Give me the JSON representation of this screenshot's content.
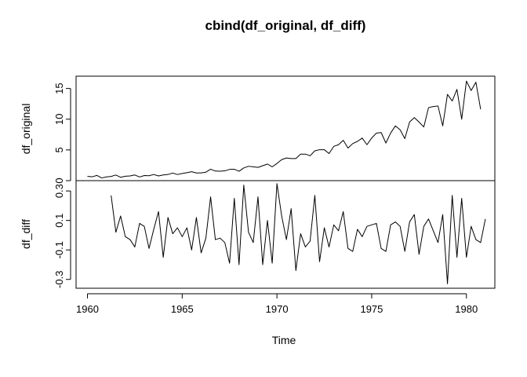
{
  "chart_data": {
    "type": "line",
    "title": "cbind(df_original, df_diff)",
    "xlabel": "Time",
    "x_ticks": [
      1960,
      1965,
      1970,
      1975,
      1980
    ],
    "xlim": [
      1959.4,
      1981.5
    ],
    "panels": [
      {
        "ylabel": "df_original",
        "ylim": [
          0,
          17
        ],
        "y_ticks": [
          0,
          5,
          10,
          15
        ],
        "series": {
          "start": 1960.0,
          "step": 0.25,
          "values": [
            0.71,
            0.63,
            0.85,
            0.44,
            0.61,
            0.69,
            0.92,
            0.55,
            0.72,
            0.77,
            0.92,
            0.6,
            0.83,
            0.8,
            1.0,
            0.77,
            0.92,
            1.0,
            1.24,
            1.0,
            1.16,
            1.3,
            1.45,
            1.25,
            1.26,
            1.38,
            1.86,
            1.56,
            1.53,
            1.59,
            1.83,
            1.86,
            1.53,
            2.07,
            2.34,
            2.25,
            2.16,
            2.43,
            2.7,
            2.25,
            2.79,
            3.42,
            3.69,
            3.6,
            3.6,
            4.32,
            4.32,
            4.05,
            4.86,
            5.04,
            5.04,
            4.41,
            5.58,
            5.85,
            6.57,
            5.31,
            6.03,
            6.39,
            6.93,
            5.85,
            6.93,
            7.74,
            7.83,
            6.12,
            7.74,
            8.91,
            8.28,
            6.84,
            9.54,
            10.26,
            9.54,
            8.73,
            11.88,
            12.06,
            12.15,
            8.91,
            14.04,
            12.96,
            14.85,
            9.99,
            16.2,
            14.67,
            16.02,
            11.61
          ]
        }
      },
      {
        "ylabel": "df_diff",
        "ylim": [
          -0.36,
          0.37
        ],
        "y_ticks": [
          -0.3,
          -0.1,
          0.1,
          0.3
        ],
        "series": {
          "start": 1961.25,
          "step": 0.25,
          "values": [
            0.27,
            0.02,
            0.13,
            -0.01,
            -0.03,
            -0.08,
            0.08,
            0.06,
            -0.09,
            0.04,
            0.16,
            -0.15,
            0.12,
            0.01,
            0.05,
            -0.01,
            0.05,
            -0.1,
            0.12,
            -0.12,
            -0.02,
            0.26,
            -0.03,
            -0.02,
            -0.05,
            -0.19,
            0.25,
            -0.2,
            0.34,
            0.02,
            -0.05,
            0.26,
            -0.2,
            0.1,
            -0.19,
            0.35,
            0.13,
            -0.03,
            0.18,
            -0.24,
            0.01,
            -0.08,
            -0.04,
            0.27,
            -0.18,
            0.05,
            -0.08,
            0.07,
            0.03,
            0.16,
            -0.09,
            -0.11,
            0.04,
            -0.01,
            0.06,
            0.07,
            0.08,
            -0.09,
            -0.11,
            0.07,
            0.09,
            0.06,
            -0.11,
            0.09,
            0.14,
            -0.13,
            0.06,
            0.11,
            0.03,
            -0.05,
            0.14,
            -0.33,
            0.27,
            -0.15,
            0.25,
            -0.15,
            0.06,
            -0.03,
            -0.05,
            0.11
          ]
        }
      }
    ]
  }
}
